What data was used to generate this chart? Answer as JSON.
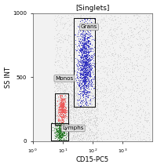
{
  "title": "[Singlets]",
  "xlabel": "CD15-PC5",
  "ylabel": "SS INT",
  "ylim": [
    0,
    1000
  ],
  "yticks": [
    0,
    500,
    1000
  ],
  "xlim": [
    4.0,
    10000
  ],
  "background_color": "#ffffff",
  "plot_bg_color": "#f2f2f2",
  "gray_scatter_color": "#aaaaaa",
  "blue_scatter_color": "#2222bb",
  "red_scatter_color": "#ee5555",
  "green_scatter_color": "#227722",
  "gate_color": "#111111",
  "label_box_color": "#e0e0e0",
  "grans_label": "Grans",
  "monos_label": "Monos",
  "lymphs_label": "Lymphs",
  "seed": 42,
  "grans_x_center_log": 1.75,
  "grans_x_std_log": 0.12,
  "grans_y_center": 600,
  "grans_y_std": 160,
  "monos_x_center_log": 0.98,
  "monos_x_std_log": 0.07,
  "monos_y_center": 250,
  "monos_y_std": 55,
  "lymphs_x_center_log": 0.92,
  "lymphs_x_std_log": 0.09,
  "lymphs_y_center": 70,
  "lymphs_y_std": 35
}
